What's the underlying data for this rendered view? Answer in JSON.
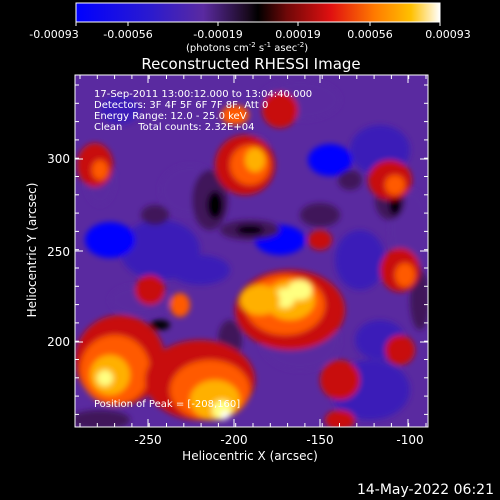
{
  "colorbar": {
    "ticks": [
      "-0.00093",
      "-0.00056",
      "-0.00019",
      "0.00019",
      "0.00056",
      "0.00093"
    ],
    "unit_main": "(photons cm",
    "unit_sup1": "-2",
    "unit_mid1": " s",
    "unit_sup2": "-1",
    "unit_mid2": " asec",
    "unit_sup3": "-2",
    "unit_end": ")"
  },
  "title": "Reconstructed RHESSI Image",
  "info": {
    "line1": "17-Sep-2011 13:00:12.000 to 13:04:40.000",
    "line2": "Detectors: 3F 4F 5F 6F 7F 8F, Att 0",
    "line3": "Energy Range: 12.0 - 25.0 keV",
    "line4": "Clean     Total counts: 2.32E+04",
    "peak": "Position of Peak = [-208,160]"
  },
  "xaxis": {
    "label": "Heliocentric X (arcsec)",
    "ticks": [
      "-250",
      "-200",
      "-150",
      "-100"
    ]
  },
  "yaxis": {
    "label": "Heliocentric Y (arcsec)",
    "ticks": [
      "300",
      "250",
      "200"
    ]
  },
  "timestamp": "14-May-2022 06:21",
  "image": {
    "colormap": [
      "#0000ff",
      "#3b1fb8",
      "#5a2aa0",
      "#40165a",
      "#000000",
      "#6a0a0a",
      "#c81010",
      "#ff5a00",
      "#ffb000",
      "#ffff80",
      "#ffffff"
    ]
  }
}
